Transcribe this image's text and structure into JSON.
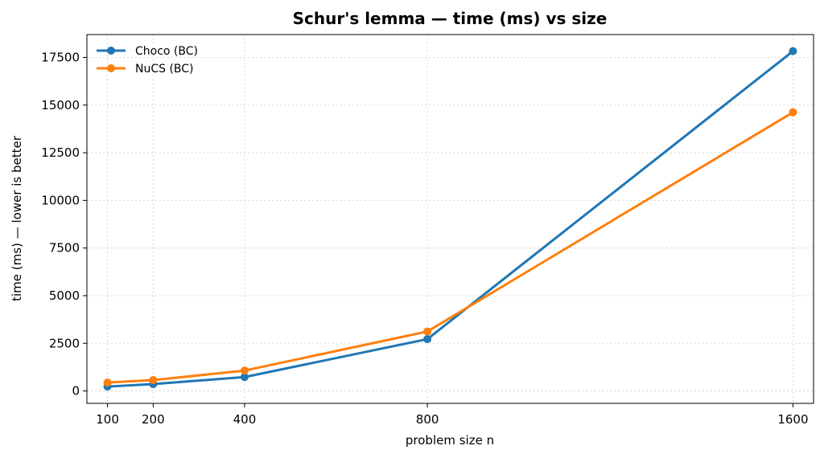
{
  "chart_data": {
    "type": "line",
    "title": "Schur's lemma — time (ms) vs size",
    "xlabel": "problem size n",
    "ylabel": "time (ms) — lower is better",
    "x": [
      100,
      200,
      400,
      800,
      1600
    ],
    "xticks": [
      100,
      200,
      400,
      800,
      1600
    ],
    "xlim": [
      55,
      1645
    ],
    "yticks": [
      0,
      2500,
      5000,
      7500,
      10000,
      12500,
      15000,
      17500
    ],
    "ylim": [
      -650,
      18700
    ],
    "grid": true,
    "legend_position": "top-left",
    "series": [
      {
        "name": "Choco (BC)",
        "color": "#1f77b4",
        "values": [
          230,
          360,
          730,
          2720,
          17830
        ]
      },
      {
        "name": "NuCS (BC)",
        "color": "#ff7f0e",
        "values": [
          440,
          570,
          1070,
          3120,
          14620
        ]
      }
    ]
  }
}
